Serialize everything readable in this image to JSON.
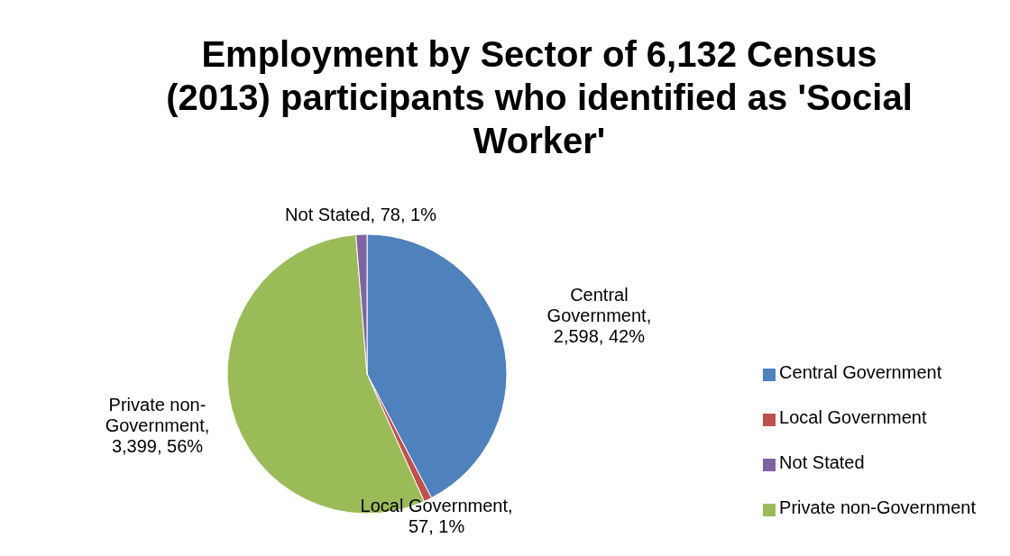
{
  "chart_data": {
    "type": "pie",
    "title": "Employment by Sector of 6,132 Census (2013) participants who identified as 'Social Worker'",
    "categories": [
      "Central Government",
      "Local Government",
      "Private non-Government",
      "Not Stated"
    ],
    "values": [
      2598,
      57,
      3399,
      78
    ],
    "colors": [
      "#4f81bd",
      "#c0504d",
      "#9bbb59",
      "#8064a2"
    ],
    "value_labels": [
      "Central Government, 2,598, 42%",
      "Local Government, 57, 1%",
      "Private non-Government, 3,399, 56%",
      "Not Stated, 78, 1%"
    ],
    "legend": "right"
  }
}
